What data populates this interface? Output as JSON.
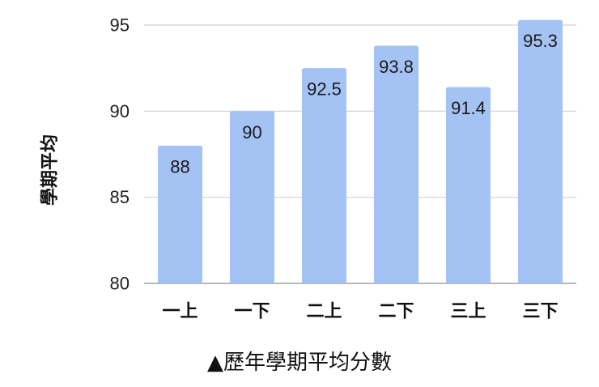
{
  "chart_data": {
    "type": "bar",
    "categories": [
      "一上",
      "一下",
      "二上",
      "二下",
      "三上",
      "三下"
    ],
    "values": [
      88,
      90,
      92.5,
      93.8,
      91.4,
      95.3
    ],
    "data_labels": [
      "88",
      "90",
      "92.5",
      "93.8",
      "91.4",
      "95.3"
    ],
    "xlabel": "",
    "ylabel": "學期平均",
    "ylim": [
      80,
      95
    ],
    "yticks": [
      80,
      85,
      90,
      95
    ],
    "grid": true,
    "legend": "none",
    "caption": "▲歷年學期平均分數",
    "colors": {
      "bar": "#a4c2f4",
      "grid": "#d0d0d0",
      "axis": "#a0a0a0"
    }
  }
}
